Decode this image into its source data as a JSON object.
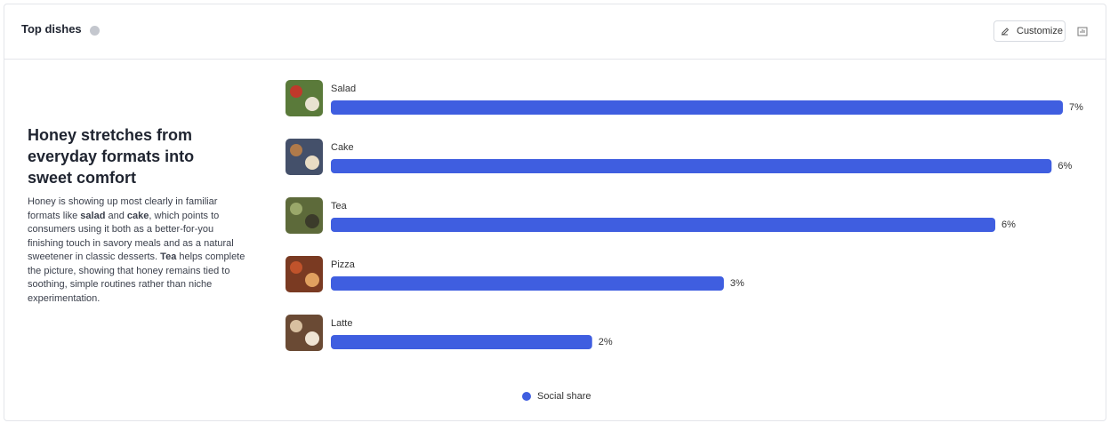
{
  "header": {
    "title": "Top dishes",
    "button": "Customize"
  },
  "insight": {
    "heading": "Honey stretches from everyday formats into sweet comfort",
    "body": [
      "Honey is showing up most clearly in familiar formats like ",
      "salad",
      " and ",
      "cake",
      ", which points to consumers using it both as a better-for-you finishing touch in savory meals and as a natural sweetener in classic desserts. ",
      "Tea",
      " helps complete the picture, showing that honey remains tied to soothing, simple routines rather than niche experimentation."
    ]
  },
  "chart_data": {
    "type": "bar",
    "orientation": "horizontal",
    "categories": [
      "Salad",
      "Cake",
      "Tea",
      "Pizza",
      "Latte"
    ],
    "series": [
      {
        "name": "Social share",
        "color": "#3f5ee0",
        "values": [
          6.5,
          6.4,
          5.9,
          3.49,
          2.32
        ],
        "value_labels": [
          "7%",
          "6%",
          "6%",
          "3%",
          "2%"
        ]
      }
    ]
  }
}
